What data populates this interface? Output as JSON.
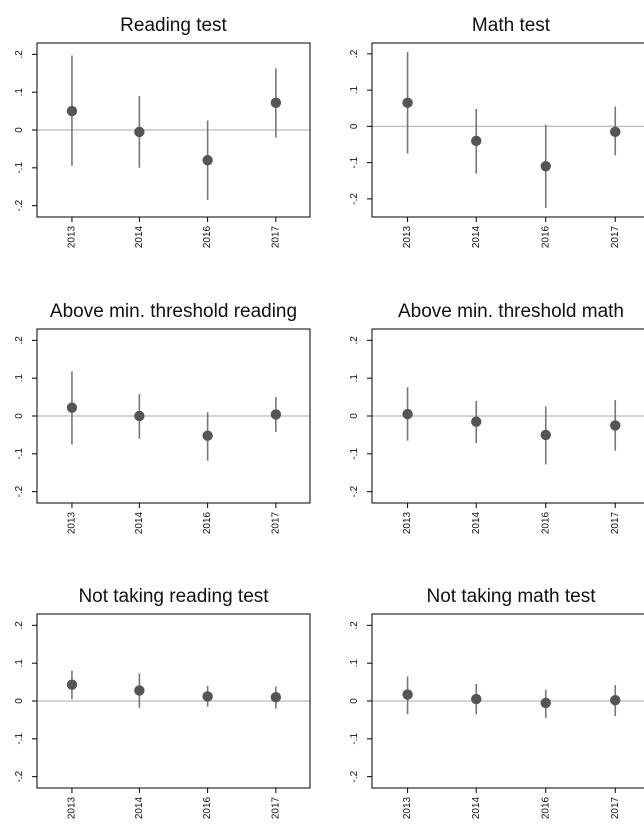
{
  "figure": {
    "colors": {
      "point": "#555555",
      "ci_line": "#777777",
      "zero_line": "#bbbbbb",
      "frame": "#000000"
    }
  },
  "chart_data": [
    {
      "type": "scatter",
      "title": "Reading test",
      "categories": [
        "2013",
        "2014",
        "2016",
        "2017"
      ],
      "estimates": [
        0.05,
        -0.005,
        -0.08,
        0.072
      ],
      "ci_low": [
        -0.095,
        -0.1,
        -0.185,
        -0.02
      ],
      "ci_high": [
        0.197,
        0.09,
        0.025,
        0.163
      ],
      "ylim": [
        -0.23,
        0.23
      ],
      "yticks": [
        ".2",
        ".1",
        "0",
        "-.1",
        "-.2"
      ],
      "ytick_values": [
        0.2,
        0.1,
        0,
        -0.1,
        -0.2
      ],
      "reference_line": 0,
      "xlabel": "",
      "ylabel": ""
    },
    {
      "type": "scatter",
      "title": "Math test",
      "categories": [
        "2013",
        "2014",
        "2016",
        "2017"
      ],
      "estimates": [
        0.065,
        -0.04,
        -0.11,
        -0.015
      ],
      "ci_low": [
        -0.075,
        -0.13,
        -0.225,
        -0.08
      ],
      "ci_high": [
        0.205,
        0.048,
        0.005,
        0.055
      ],
      "ylim": [
        -0.25,
        0.23
      ],
      "yticks": [
        ".2",
        ".1",
        "0",
        "-.1",
        "-.2"
      ],
      "ytick_values": [
        0.2,
        0.1,
        0,
        -0.1,
        -0.2
      ],
      "reference_line": 0,
      "xlabel": "",
      "ylabel": ""
    },
    {
      "type": "scatter",
      "title": "Above min. threshold reading",
      "categories": [
        "2013",
        "2014",
        "2016",
        "2017"
      ],
      "estimates": [
        0.022,
        0.0,
        -0.052,
        0.004
      ],
      "ci_low": [
        -0.075,
        -0.06,
        -0.118,
        -0.042
      ],
      "ci_high": [
        0.118,
        0.058,
        0.01,
        0.05
      ],
      "ylim": [
        -0.23,
        0.23
      ],
      "yticks": [
        ".2",
        ".1",
        "0",
        "-.1",
        "-.2"
      ],
      "ytick_values": [
        0.2,
        0.1,
        0,
        -0.1,
        -0.2
      ],
      "reference_line": 0,
      "xlabel": "",
      "ylabel": ""
    },
    {
      "type": "scatter",
      "title": "Above min. threshold math",
      "categories": [
        "2013",
        "2014",
        "2016",
        "2017"
      ],
      "estimates": [
        0.005,
        -0.015,
        -0.05,
        -0.025
      ],
      "ci_low": [
        -0.065,
        -0.072,
        -0.128,
        -0.092
      ],
      "ci_high": [
        0.076,
        0.04,
        0.025,
        0.042
      ],
      "ylim": [
        -0.23,
        0.23
      ],
      "yticks": [
        ".2",
        ".1",
        "0",
        "-.1",
        "-.2"
      ],
      "ytick_values": [
        0.2,
        0.1,
        0,
        -0.1,
        -0.2
      ],
      "reference_line": 0,
      "xlabel": "",
      "ylabel": ""
    },
    {
      "type": "scatter",
      "title": "Not taking reading test",
      "categories": [
        "2013",
        "2014",
        "2016",
        "2017"
      ],
      "estimates": [
        0.043,
        0.028,
        0.012,
        0.01
      ],
      "ci_low": [
        0.005,
        -0.018,
        -0.015,
        -0.02
      ],
      "ci_high": [
        0.08,
        0.073,
        0.04,
        0.038
      ],
      "ylim": [
        -0.23,
        0.23
      ],
      "yticks": [
        ".2",
        ".1",
        "0",
        "-.1",
        "-.2"
      ],
      "ytick_values": [
        0.2,
        0.1,
        0,
        -0.1,
        -0.2
      ],
      "reference_line": 0,
      "xlabel": "",
      "ylabel": ""
    },
    {
      "type": "scatter",
      "title": "Not taking math test",
      "categories": [
        "2013",
        "2014",
        "2016",
        "2017"
      ],
      "estimates": [
        0.017,
        0.005,
        -0.005,
        0.002
      ],
      "ci_low": [
        -0.035,
        -0.035,
        -0.045,
        -0.04
      ],
      "ci_high": [
        0.065,
        0.045,
        0.03,
        0.042
      ],
      "ylim": [
        -0.23,
        0.23
      ],
      "yticks": [
        ".2",
        ".1",
        "0",
        "-.1",
        "-.2"
      ],
      "ytick_values": [
        0.2,
        0.1,
        0,
        -0.1,
        -0.2
      ],
      "reference_line": 0,
      "xlabel": "",
      "ylabel": ""
    }
  ]
}
